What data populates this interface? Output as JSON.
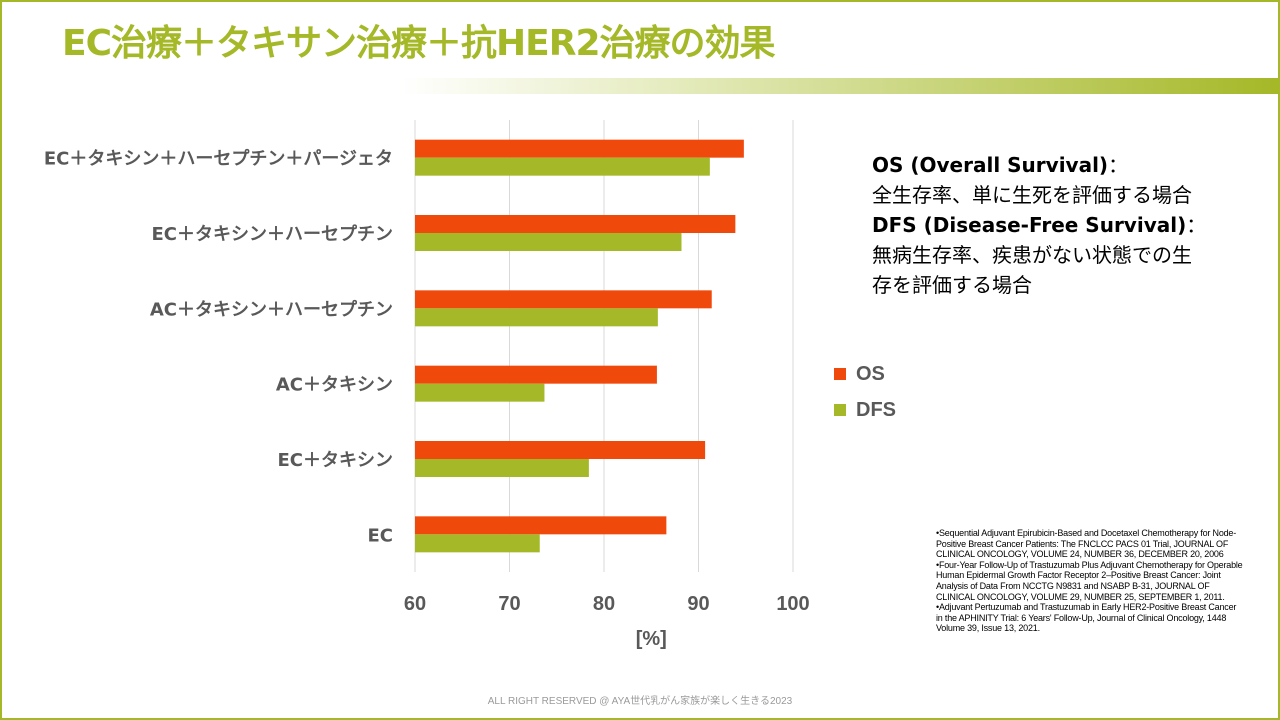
{
  "page": {
    "title": "EC治療＋タキサン治療＋抗HER2治療の効果",
    "footer": "ALL RIGHT RESERVED @ AYA世代乳がん家族が楽しく生きる2023"
  },
  "colors": {
    "accent": "#a5b827",
    "os": "#f0490c",
    "dfs": "#a5b827"
  },
  "chart_data": {
    "type": "bar",
    "orientation": "horizontal",
    "categories": [
      "EC＋タキシン＋ハーセプチン＋パージェタ",
      "EC＋タキシン＋ハーセプチン",
      "AC＋タキシン＋ハーセプチン",
      "AC＋タキシン",
      "EC＋タキシン",
      "EC"
    ],
    "series": [
      {
        "name": "OS",
        "color": "#f0490c",
        "values": [
          94.8,
          93.9,
          91.4,
          85.6,
          90.7,
          86.6
        ]
      },
      {
        "name": "DFS",
        "color": "#a5b827",
        "values": [
          91.2,
          88.2,
          85.7,
          73.7,
          78.4,
          73.2
        ]
      }
    ],
    "xlabel": "[%]",
    "xlim": [
      60,
      100
    ],
    "xticks": [
      60,
      70,
      80,
      90,
      100
    ],
    "grid": true,
    "legend_position": "right"
  },
  "definitions": {
    "os_term": "OS (Overall Survival)",
    "os_colon": "：",
    "os_desc": "全生存率、単に生死を評価する場合",
    "dfs_term": "DFS (Disease-Free Survival)",
    "dfs_colon": "：",
    "dfs_desc_line1": "無病生存率、疾患がない状態での生",
    "dfs_desc_line2": "存を評価する場合"
  },
  "references": [
    "•Sequential Adjuvant Epirubicin-Based and Docetaxel Chemotherapy for Node-Positive Breast Cancer Patients: The FNCLCC PACS 01 Trial, JOURNAL OF CLINICAL ONCOLOGY, VOLUME 24, NUMBER 36, DECEMBER 20, 2006",
    "•Four-Year Follow-Up of Trastuzumab Plus Adjuvant Chemotherapy for Operable Human Epidermal Growth Factor Receptor 2–Positive Breast Cancer: Joint Analysis of Data From NCCTG N9831 and NSABP B-31, JOURNAL OF CLINICAL ONCOLOGY, VOLUME 29, NUMBER 25, SEPTEMBER 1, 2011.",
    "•Adjuvant Pertuzumab and Trastuzumab in Early HER2-Positive Breast Cancer in the APHINITY Trial: 6 Years' Follow-Up, Journal of Clinical Oncology, 1448 Volume 39, Issue 13, 2021."
  ]
}
